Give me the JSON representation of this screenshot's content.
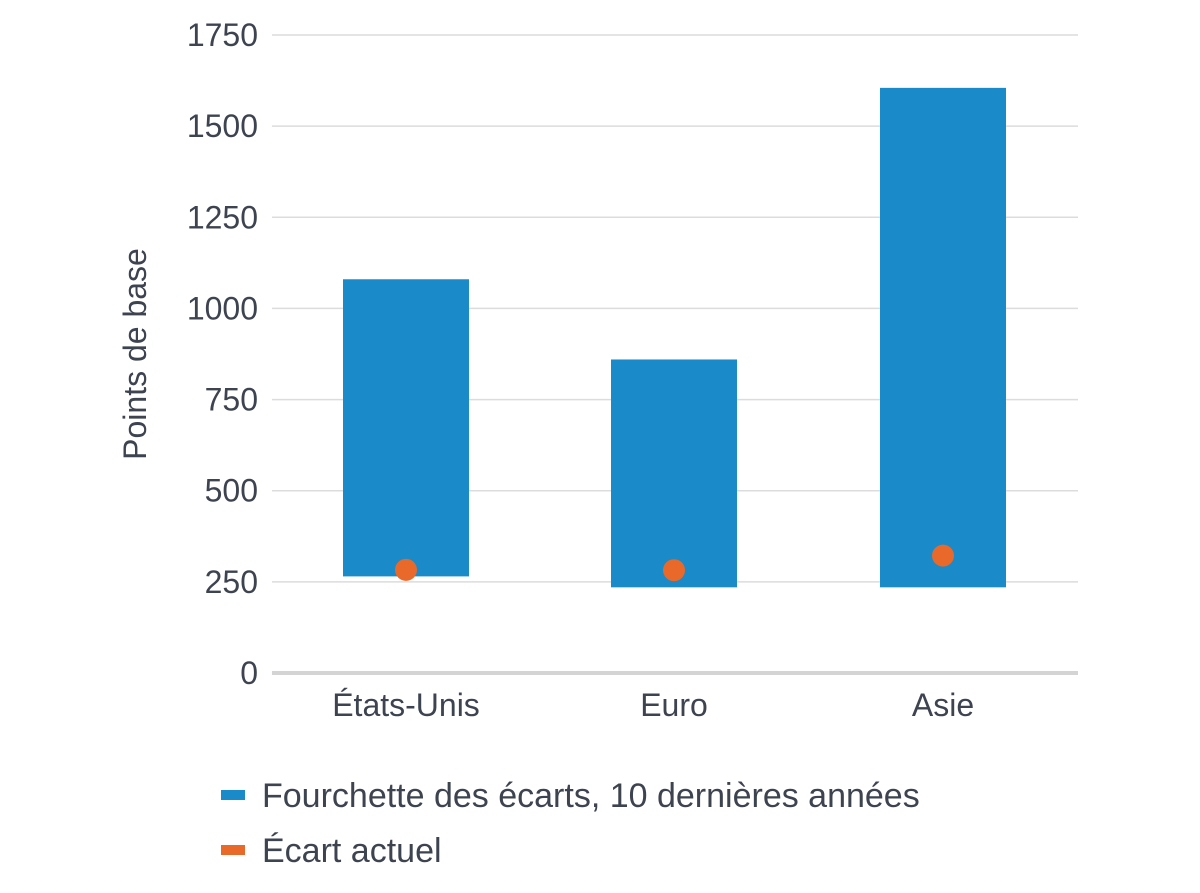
{
  "chart_data": {
    "type": "bar",
    "title": "",
    "xlabel": "",
    "ylabel": "Points de base",
    "ylim": [
      0,
      1750
    ],
    "yticks": [
      0,
      250,
      500,
      750,
      1000,
      1250,
      1500,
      1750
    ],
    "yticks_labels": [
      "0",
      "250",
      "500",
      "750",
      "1000",
      "1250",
      "1500",
      "1750"
    ],
    "grid": true,
    "legend_position": "bottom",
    "categories": [
      "États-Unis",
      "Euro",
      "Asie"
    ],
    "series": [
      {
        "name": "Fourchette des écarts, 10 dernières années",
        "kind": "floating-bar",
        "color": "#1b8ac8",
        "low": [
          265,
          235,
          235
        ],
        "high": [
          1080,
          860,
          1605
        ]
      },
      {
        "name": "Écart actuel",
        "kind": "point",
        "color": "#e8692a",
        "values": [
          283,
          282,
          322
        ]
      }
    ]
  }
}
